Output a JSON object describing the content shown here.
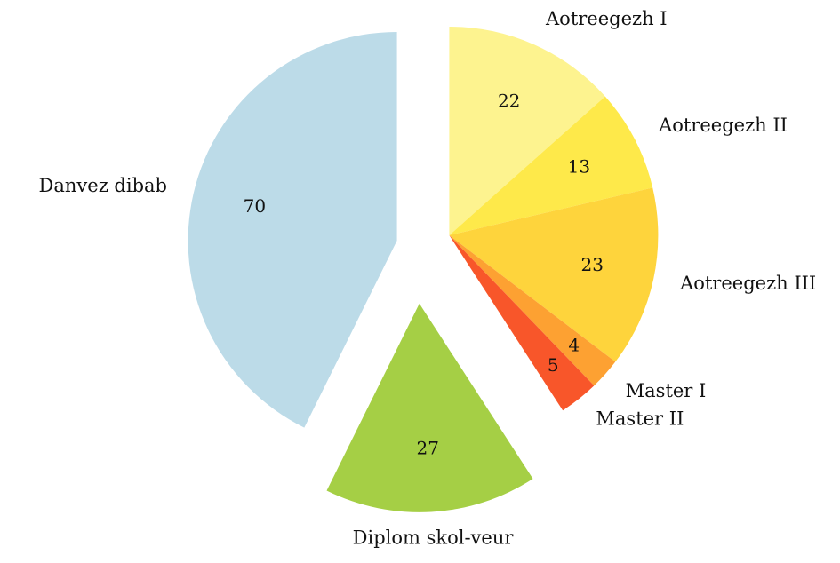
{
  "chart_data": {
    "type": "pie",
    "categories": [
      "Aotreegezh I",
      "Aotreegezh II",
      "Aotreegezh III",
      "Master I",
      "Master II",
      "Diplom skol-veur",
      "Danvez dibab"
    ],
    "values": [
      22,
      13,
      23,
      4,
      5,
      27,
      70
    ],
    "colors": [
      "#fdf38f",
      "#fee94a",
      "#fed43c",
      "#fda132",
      "#f8562a",
      "#a5cf45",
      "#bcdbe8"
    ]
  }
}
